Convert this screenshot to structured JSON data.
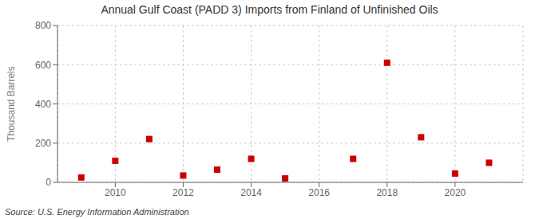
{
  "chart_data": {
    "type": "scatter",
    "title": "Annual Gulf Coast (PADD 3) Imports from Finland of Unfinished Oils",
    "ylabel": "Thousand Barrels",
    "annotations": [
      "Source: U.S. Energy Information Administration"
    ],
    "x": [
      2009,
      2010,
      2011,
      2012,
      2013,
      2014,
      2015,
      2017,
      2018,
      2019,
      2020,
      2021
    ],
    "values": [
      25,
      110,
      221,
      35,
      65,
      120,
      20,
      120,
      610,
      230,
      45,
      100
    ],
    "color": "#cc0000",
    "marker": "square",
    "grid": true,
    "xlim": [
      2008.3,
      2022.0
    ],
    "xticks": [
      2010,
      2012,
      2014,
      2016,
      2018,
      2020
    ],
    "ylim": [
      0,
      800
    ],
    "yticks": [
      0,
      200,
      400,
      600,
      800
    ]
  }
}
